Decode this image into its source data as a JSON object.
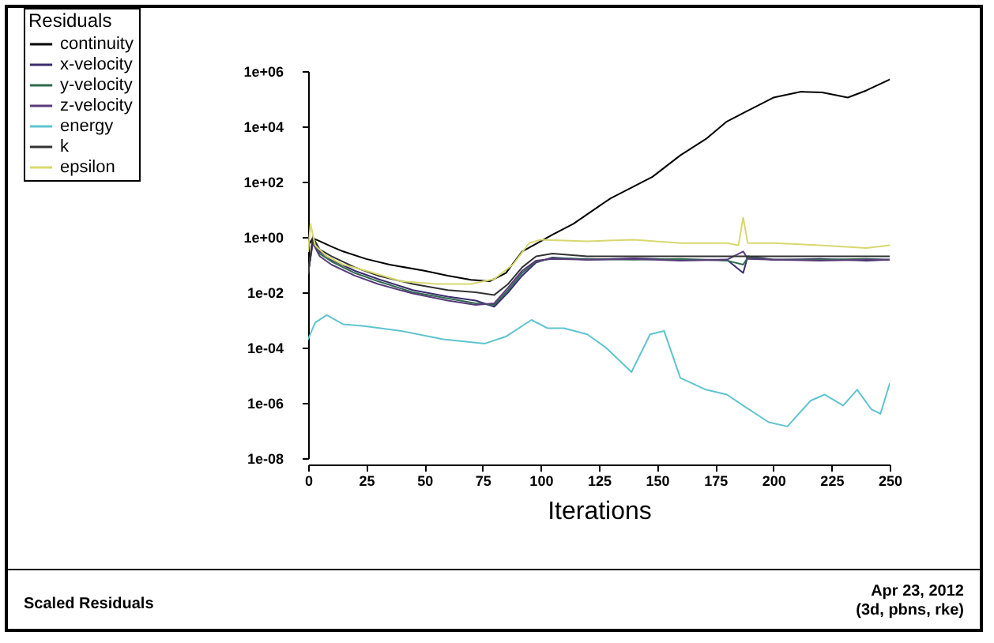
{
  "chart_data": {
    "type": "line",
    "title": "Scaled Residuals",
    "xlabel": "Iterations",
    "legend_title": "Residuals",
    "legend": "top left",
    "log": true,
    "xlim": [
      0,
      250
    ],
    "xticks": [
      0,
      25,
      50,
      75,
      100,
      125,
      150,
      175,
      200,
      225,
      250
    ],
    "ylim": [
      1e-08,
      1000000.0
    ],
    "yticks": [
      {
        "value": 1e-08,
        "label": "1e-08"
      },
      {
        "value": 1e-06,
        "label": "1e-06"
      },
      {
        "value": 0.0001,
        "label": "1e-04"
      },
      {
        "value": 0.01,
        "label": "1e-02"
      },
      {
        "value": 1,
        "label": "1e+00"
      },
      {
        "value": 100,
        "label": "1e+02"
      },
      {
        "value": 10000.0,
        "label": "1e+04"
      },
      {
        "value": 1000000.0,
        "label": "1e+06"
      }
    ],
    "annotations": [
      "Apr 23, 2012",
      "(3d, pbns, rke)"
    ],
    "series": [
      {
        "name": "continuity",
        "color": "#000000",
        "x": [
          0,
          2,
          5,
          10,
          15,
          25,
          35,
          50,
          60,
          70,
          78,
          85,
          92,
          100,
          105,
          114,
          130,
          148,
          160,
          171,
          180,
          189,
          200,
          212,
          221,
          232,
          240,
          250
        ],
        "values": [
          0.5,
          0.9,
          0.7,
          0.45,
          0.3,
          0.16,
          0.1,
          0.06,
          0.04,
          0.028,
          0.025,
          0.05,
          0.3,
          0.7,
          1.2,
          3,
          25,
          150,
          900,
          3500,
          15000,
          37000,
          110000,
          180000,
          170000,
          110000,
          200000,
          500000
        ]
      },
      {
        "name": "x-velocity",
        "color": "#3b2c6e",
        "x": [
          0,
          2,
          5,
          10,
          20,
          30,
          45,
          60,
          72,
          80,
          86,
          92,
          98,
          105,
          120,
          140,
          160,
          180,
          187,
          189,
          200,
          220,
          240,
          250
        ],
        "values": [
          0.05,
          0.8,
          0.3,
          0.15,
          0.06,
          0.03,
          0.012,
          0.007,
          0.005,
          0.003,
          0.01,
          0.04,
          0.12,
          0.18,
          0.15,
          0.17,
          0.15,
          0.15,
          0.05,
          0.2,
          0.15,
          0.16,
          0.14,
          0.15
        ]
      },
      {
        "name": "y-velocity",
        "color": "#2e6b4f",
        "x": [
          0,
          2,
          5,
          10,
          20,
          30,
          45,
          60,
          72,
          80,
          86,
          92,
          98,
          105,
          120,
          140,
          160,
          180,
          187,
          189,
          200,
          220,
          240,
          250
        ],
        "values": [
          0.05,
          0.7,
          0.25,
          0.13,
          0.05,
          0.025,
          0.01,
          0.006,
          0.004,
          0.0035,
          0.012,
          0.05,
          0.13,
          0.17,
          0.16,
          0.15,
          0.16,
          0.14,
          0.1,
          0.18,
          0.15,
          0.15,
          0.16,
          0.15
        ]
      },
      {
        "name": "z-velocity",
        "color": "#5a3a7a",
        "x": [
          0,
          2,
          5,
          10,
          20,
          30,
          45,
          60,
          72,
          80,
          86,
          92,
          98,
          105,
          120,
          140,
          160,
          180,
          187,
          189,
          200,
          220,
          240,
          250
        ],
        "values": [
          0.05,
          0.6,
          0.2,
          0.1,
          0.04,
          0.02,
          0.009,
          0.005,
          0.0035,
          0.004,
          0.015,
          0.06,
          0.14,
          0.16,
          0.15,
          0.16,
          0.14,
          0.15,
          0.3,
          0.16,
          0.15,
          0.14,
          0.15,
          0.15
        ]
      },
      {
        "name": "energy",
        "color": "#5fc4d0",
        "x": [
          0,
          3,
          8,
          15,
          24,
          40,
          58,
          76,
          85,
          96,
          103,
          110,
          120,
          128,
          139,
          147,
          153,
          160,
          171,
          180,
          187,
          198,
          206,
          216,
          222,
          230,
          236,
          242,
          246,
          250
        ],
        "values": [
          0.0002,
          0.0008,
          0.0015,
          0.0007,
          0.0006,
          0.0004,
          0.0002,
          0.00014,
          0.00025,
          0.001,
          0.0005,
          0.0005,
          0.0003,
          0.0001,
          1.3e-05,
          0.0003,
          0.0004,
          8e-06,
          3e-06,
          2e-06,
          8e-07,
          2e-07,
          1.4e-07,
          1.2e-06,
          2e-06,
          8e-07,
          3e-06,
          6e-07,
          4e-07,
          5e-06
        ]
      },
      {
        "name": "k",
        "color": "#333333",
        "x": [
          0,
          2,
          5,
          10,
          20,
          30,
          45,
          60,
          72,
          80,
          86,
          92,
          98,
          105,
          120,
          140,
          160,
          180,
          187,
          189,
          200,
          220,
          240,
          250
        ],
        "values": [
          0.05,
          1,
          0.35,
          0.2,
          0.08,
          0.04,
          0.02,
          0.012,
          0.01,
          0.008,
          0.02,
          0.08,
          0.2,
          0.25,
          0.2,
          0.2,
          0.2,
          0.2,
          0.2,
          0.2,
          0.2,
          0.2,
          0.2,
          0.2
        ]
      },
      {
        "name": "epsilon",
        "color": "#d8d870",
        "x": [
          0,
          1,
          3,
          8,
          15,
          25,
          40,
          55,
          70,
          80,
          88,
          95,
          100,
          120,
          140,
          160,
          180,
          185,
          187,
          189,
          200,
          220,
          240,
          250
        ],
        "values": [
          0.3,
          3,
          0.5,
          0.2,
          0.1,
          0.06,
          0.025,
          0.02,
          0.02,
          0.03,
          0.1,
          0.6,
          0.8,
          0.7,
          0.8,
          0.6,
          0.6,
          0.5,
          5,
          0.6,
          0.6,
          0.5,
          0.4,
          0.5
        ]
      }
    ]
  }
}
